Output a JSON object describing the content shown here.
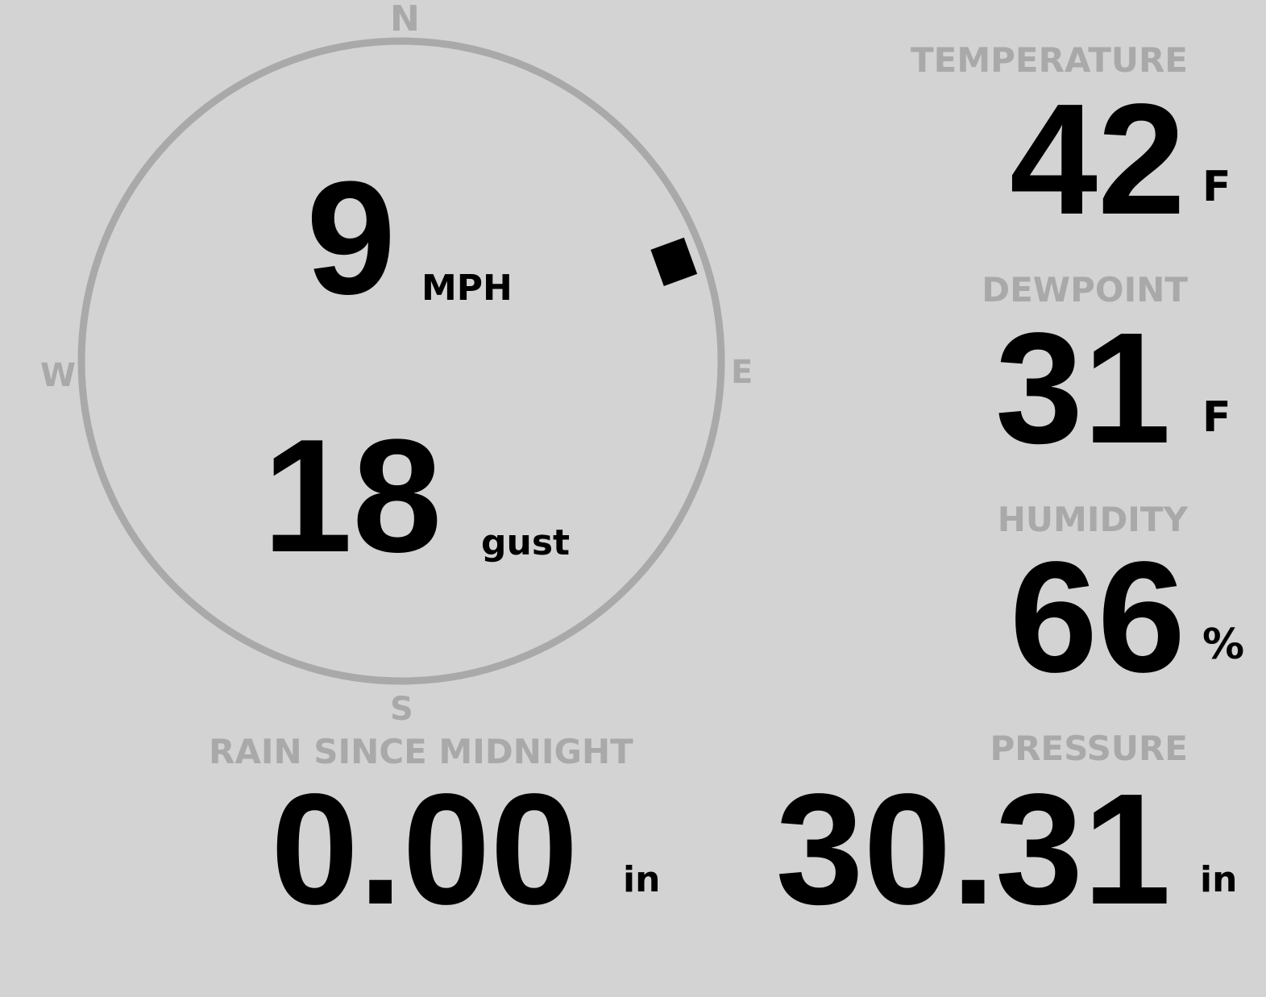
{
  "wind": {
    "compass": {
      "n": "N",
      "e": "E",
      "s": "S",
      "w": "W"
    },
    "direction_degrees": 70,
    "speed": "9",
    "speed_unit": "MPH",
    "gust": "18",
    "gust_unit": "gust"
  },
  "temperature": {
    "label": "TEMPERATURE",
    "value": "42",
    "unit": "F"
  },
  "dewpoint": {
    "label": "DEWPOINT",
    "value": "31",
    "unit": "F"
  },
  "humidity": {
    "label": "HUMIDITY",
    "value": "66",
    "unit": "%"
  },
  "rain": {
    "label": "RAIN SINCE MIDNIGHT",
    "value": "0.00",
    "unit": "in"
  },
  "pressure": {
    "label": "PRESSURE",
    "value": "30.31",
    "unit": "in"
  },
  "colors": {
    "background": "#d3d3d3",
    "muted": "#a9a9a9",
    "text": "#000000"
  }
}
